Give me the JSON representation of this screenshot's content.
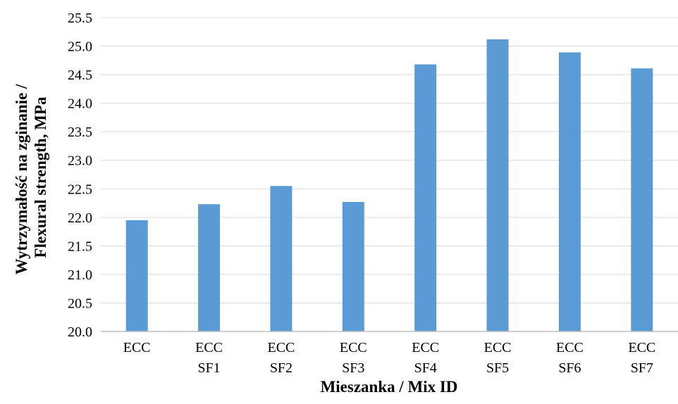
{
  "chart_data": {
    "type": "bar",
    "title": "",
    "xlabel": "Mieszanka / Mix ID",
    "ylabel_lines": [
      "Wytrzymałość na zginanie /",
      "Flexural strength, MPa"
    ],
    "categories": [
      [
        "ECC"
      ],
      [
        "ECC",
        "SF1"
      ],
      [
        "ECC",
        "SF2"
      ],
      [
        "ECC",
        "SF3"
      ],
      [
        "ECC",
        "SF4"
      ],
      [
        "ECC",
        "SF5"
      ],
      [
        "ECC",
        "SF6"
      ],
      [
        "ECC",
        "SF7"
      ]
    ],
    "values": [
      21.95,
      22.23,
      22.55,
      22.27,
      24.68,
      25.12,
      24.89,
      24.61
    ],
    "ylim": [
      20.0,
      25.5
    ],
    "yticks": [
      "20.0",
      "20.5",
      "21.0",
      "21.5",
      "22.0",
      "22.5",
      "23.0",
      "23.5",
      "24.0",
      "24.5",
      "25.0",
      "25.5"
    ],
    "grid": true,
    "legend": "none",
    "colors": {
      "bar": "#5B9BD5",
      "grid": "#D9D9D9",
      "axis": "#BFBFBF"
    }
  }
}
